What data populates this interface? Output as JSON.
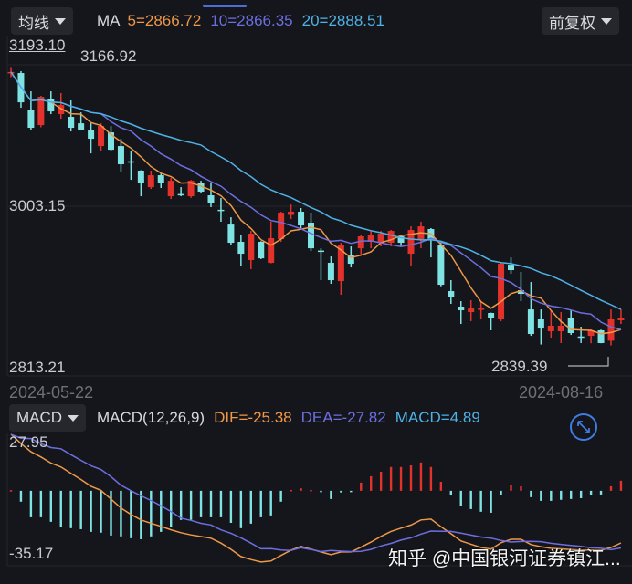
{
  "header": {
    "ma_selector": "均线",
    "ma_label": "MA",
    "ma5": "5=2866.72",
    "ma10": "10=2866.35",
    "ma20": "20=2888.51",
    "adjust_selector": "前复权"
  },
  "price_axis": {
    "top": "3193.10",
    "mid": "3003.15",
    "bottom": "2813.21",
    "max_marker": "3166.92",
    "min_marker": "2839.39"
  },
  "dates": {
    "start": "2024-05-22",
    "end": "2024-08-16"
  },
  "macd_header": {
    "selector": "MACD",
    "params": "MACD(12,26,9)",
    "dif": "DIF=-25.38",
    "dea": "DEA=-27.82",
    "macd": "MACD=4.89"
  },
  "macd_axis": {
    "top": "27.95",
    "bottom": "-35.17"
  },
  "watermark": "知乎 @中国银河证券镇江...",
  "colors": {
    "up": "#e3322c",
    "down": "#7fe3e4",
    "ma5": "#ee9848",
    "ma10": "#6d6fe0",
    "ma20": "#4fb2e6",
    "dif": "#ee9848",
    "dea": "#6d6fe0",
    "accent": "#3f7be0"
  },
  "chart_data": [
    {
      "type": "candlestick",
      "title": "",
      "x_range": [
        "2024-05-22",
        "2024-08-16"
      ],
      "ylim": [
        2813.21,
        3193.1
      ],
      "moving_averages": [
        5,
        10,
        20
      ],
      "ohlc": [
        [
          3160,
          3166.92,
          3155,
          3161
        ],
        [
          3159.8,
          3162,
          3119.0,
          3125.4
        ],
        [
          3116.8,
          3138.3,
          3093.2,
          3095.4
        ],
        [
          3098.6,
          3133,
          3096,
          3131.9
        ],
        [
          3129.7,
          3138.3,
          3111.5,
          3114.7
        ],
        [
          3111.5,
          3136.2,
          3106.1,
          3122.2
        ],
        [
          3108.3,
          3127.6,
          3091.1,
          3095.4
        ],
        [
          3100.7,
          3113.6,
          3092.2,
          3093.2
        ],
        [
          3092.2,
          3100.7,
          3065.3,
          3082.5
        ],
        [
          3073.9,
          3100.7,
          3068.6,
          3097.5
        ],
        [
          3090.0,
          3097.5,
          3068.6,
          3069.6
        ],
        [
          3073.9,
          3082.5,
          3043.9,
          3052.5
        ],
        [
          3056,
          3068.6,
          3034.2,
          3055.7
        ],
        [
          3045.0,
          3045.5,
          3014.9,
          3031.0
        ],
        [
          3025.6,
          3045.0,
          3023.5,
          3039.6
        ],
        [
          3039.6,
          3041.7,
          3024.6,
          3031.0
        ],
        [
          3014.9,
          3036.4,
          3011.7,
          3033.1
        ],
        [
          3017.5,
          3025.6,
          3014.9,
          3017.1
        ],
        [
          3014.9,
          3034,
          3013,
          3033.1
        ],
        [
          3031.0,
          3033.1,
          3018.1,
          3020.3
        ],
        [
          3016.0,
          3031.0,
          3002.1,
          3007.4
        ],
        [
          2999,
          3012.8,
          2984.9,
          2998.8
        ],
        [
          2981.6,
          2990.2,
          2958.0,
          2960.2
        ],
        [
          2961.3,
          2969.9,
          2932.3,
          2947.3
        ],
        [
          2939.8,
          2974.1,
          2929.1,
          2970.9
        ],
        [
          2961.3,
          2962,
          2941,
          2941.9
        ],
        [
          2936.6,
          2984.9,
          2936,
          2965.6
        ],
        [
          2964.5,
          2996.7,
          2961.3,
          2995.6
        ],
        [
          2993,
          3005.2,
          2988.1,
          2996.7
        ],
        [
          2996.7,
          3001.0,
          2977.4,
          2980.6
        ],
        [
          2983.8,
          2995.6,
          2950.5,
          2953.7
        ],
        [
          2951,
          2953.7,
          2916.2,
          2950.5
        ],
        [
          2936.6,
          2944.1,
          2911.9,
          2916.2
        ],
        [
          2915.1,
          2960.2,
          2899.0,
          2958.0
        ],
        [
          2945.2,
          2955.9,
          2931.2,
          2935.5
        ],
        [
          2953.7,
          2968.8,
          2945.2,
          2967.7
        ],
        [
          2961.3,
          2974.1,
          2953.7,
          2969.9
        ],
        [
          2960.2,
          2974.1,
          2955.9,
          2970.9
        ],
        [
          2960.2,
          2975.2,
          2955.9,
          2974.1
        ],
        [
          2967.7,
          2969.9,
          2955.9,
          2960.2
        ],
        [
          2947.3,
          2979.5,
          2933.4,
          2975.2
        ],
        [
          2964.5,
          2984.9,
          2953.7,
          2979.5
        ],
        [
          2976.3,
          2977.4,
          2943.0,
          2964.5
        ],
        [
          2958.0,
          2962,
          2909,
          2910.8
        ],
        [
          2903.3,
          2916.2,
          2888.3,
          2896.9
        ],
        [
          2885.1,
          2891.5,
          2864.7,
          2880.8
        ],
        [
          2878.6,
          2892.6,
          2868.0,
          2882.9
        ],
        [
          2881.5,
          2891.5,
          2870.1,
          2882.9
        ],
        [
          2877.6,
          2878,
          2857.2,
          2872.2
        ],
        [
          2870.1,
          2937,
          2868,
          2935.5
        ],
        [
          2934.4,
          2943.0,
          2923.7,
          2928.0
        ],
        [
          2904.4,
          2925.8,
          2891.5,
          2900.1
        ],
        [
          2881.8,
          2914,
          2850.7,
          2852.9
        ],
        [
          2870.1,
          2881.8,
          2840.5,
          2859.3
        ],
        [
          2856.1,
          2880.8,
          2848.6,
          2862.6
        ],
        [
          2856.1,
          2878.6,
          2842.2,
          2862.6
        ],
        [
          2872.2,
          2880.8,
          2851.8,
          2854.0
        ],
        [
          2850,
          2861.5,
          2842.2,
          2849.7
        ],
        [
          2850.7,
          2858,
          2842,
          2857.2
        ],
        [
          2857.2,
          2858,
          2842,
          2842.2
        ],
        [
          2845.0,
          2881.8,
          2839.39,
          2870.1
        ],
        [
          2869,
          2881.8,
          2864.7,
          2871.2
        ]
      ]
    },
    {
      "type": "macd",
      "ylim": [
        -35.17,
        27.95
      ],
      "dif": [
        27.6,
        23,
        19,
        16.5,
        13.5,
        11.6,
        8.5,
        5.5,
        2.2,
        0.2,
        -4,
        -8.4,
        -11.5,
        -14.2,
        -15.8,
        -17.3,
        -19,
        -20.4,
        -21.5,
        -22.3,
        -23.1,
        -25.5,
        -28.5,
        -32,
        -33.5,
        -34.7,
        -34.2,
        -31.5,
        -28.9,
        -27.1,
        -28.4,
        -29.8,
        -31.1,
        -29.8,
        -29.8,
        -27.5,
        -25.0,
        -22.2,
        -19.8,
        -18.2,
        -16.7,
        -14.2,
        -13.8,
        -17.5,
        -20.9,
        -24.4,
        -26.0,
        -27.6,
        -28.4,
        -25.3,
        -23.6,
        -23.6,
        -26.2,
        -27.2,
        -28.0,
        -28.3,
        -28.6,
        -28.9,
        -28.9,
        -28.9,
        -27.6,
        -25.38
      ],
      "macd": [
        0.3,
        -5.3,
        -12.9,
        -12.9,
        -15.1,
        -17.8,
        -18.2,
        -18.7,
        -20.0,
        -20.4,
        -21.8,
        -22.2,
        -23.1,
        -23.6,
        -22.2,
        -20.0,
        -17.8,
        -14.2,
        -14.2,
        -12.9,
        -12.9,
        -12.9,
        -15.6,
        -18.2,
        -16.0,
        -12.9,
        -12.0,
        -5.3,
        0.4,
        1.2,
        0.4,
        -0.4,
        -4.0,
        -0.8,
        -0.4,
        4.0,
        7.1,
        9.3,
        11.6,
        11.6,
        12.4,
        13.8,
        11.6,
        4.4,
        -2.2,
        -7.6,
        -8.9,
        -10.2,
        -10.7,
        -2.2,
        2.7,
        2.2,
        -3.1,
        -4.9,
        -4.9,
        -4.4,
        -4.0,
        -3.6,
        -2.2,
        -1.8,
        2.2,
        4.89
      ]
    }
  ]
}
